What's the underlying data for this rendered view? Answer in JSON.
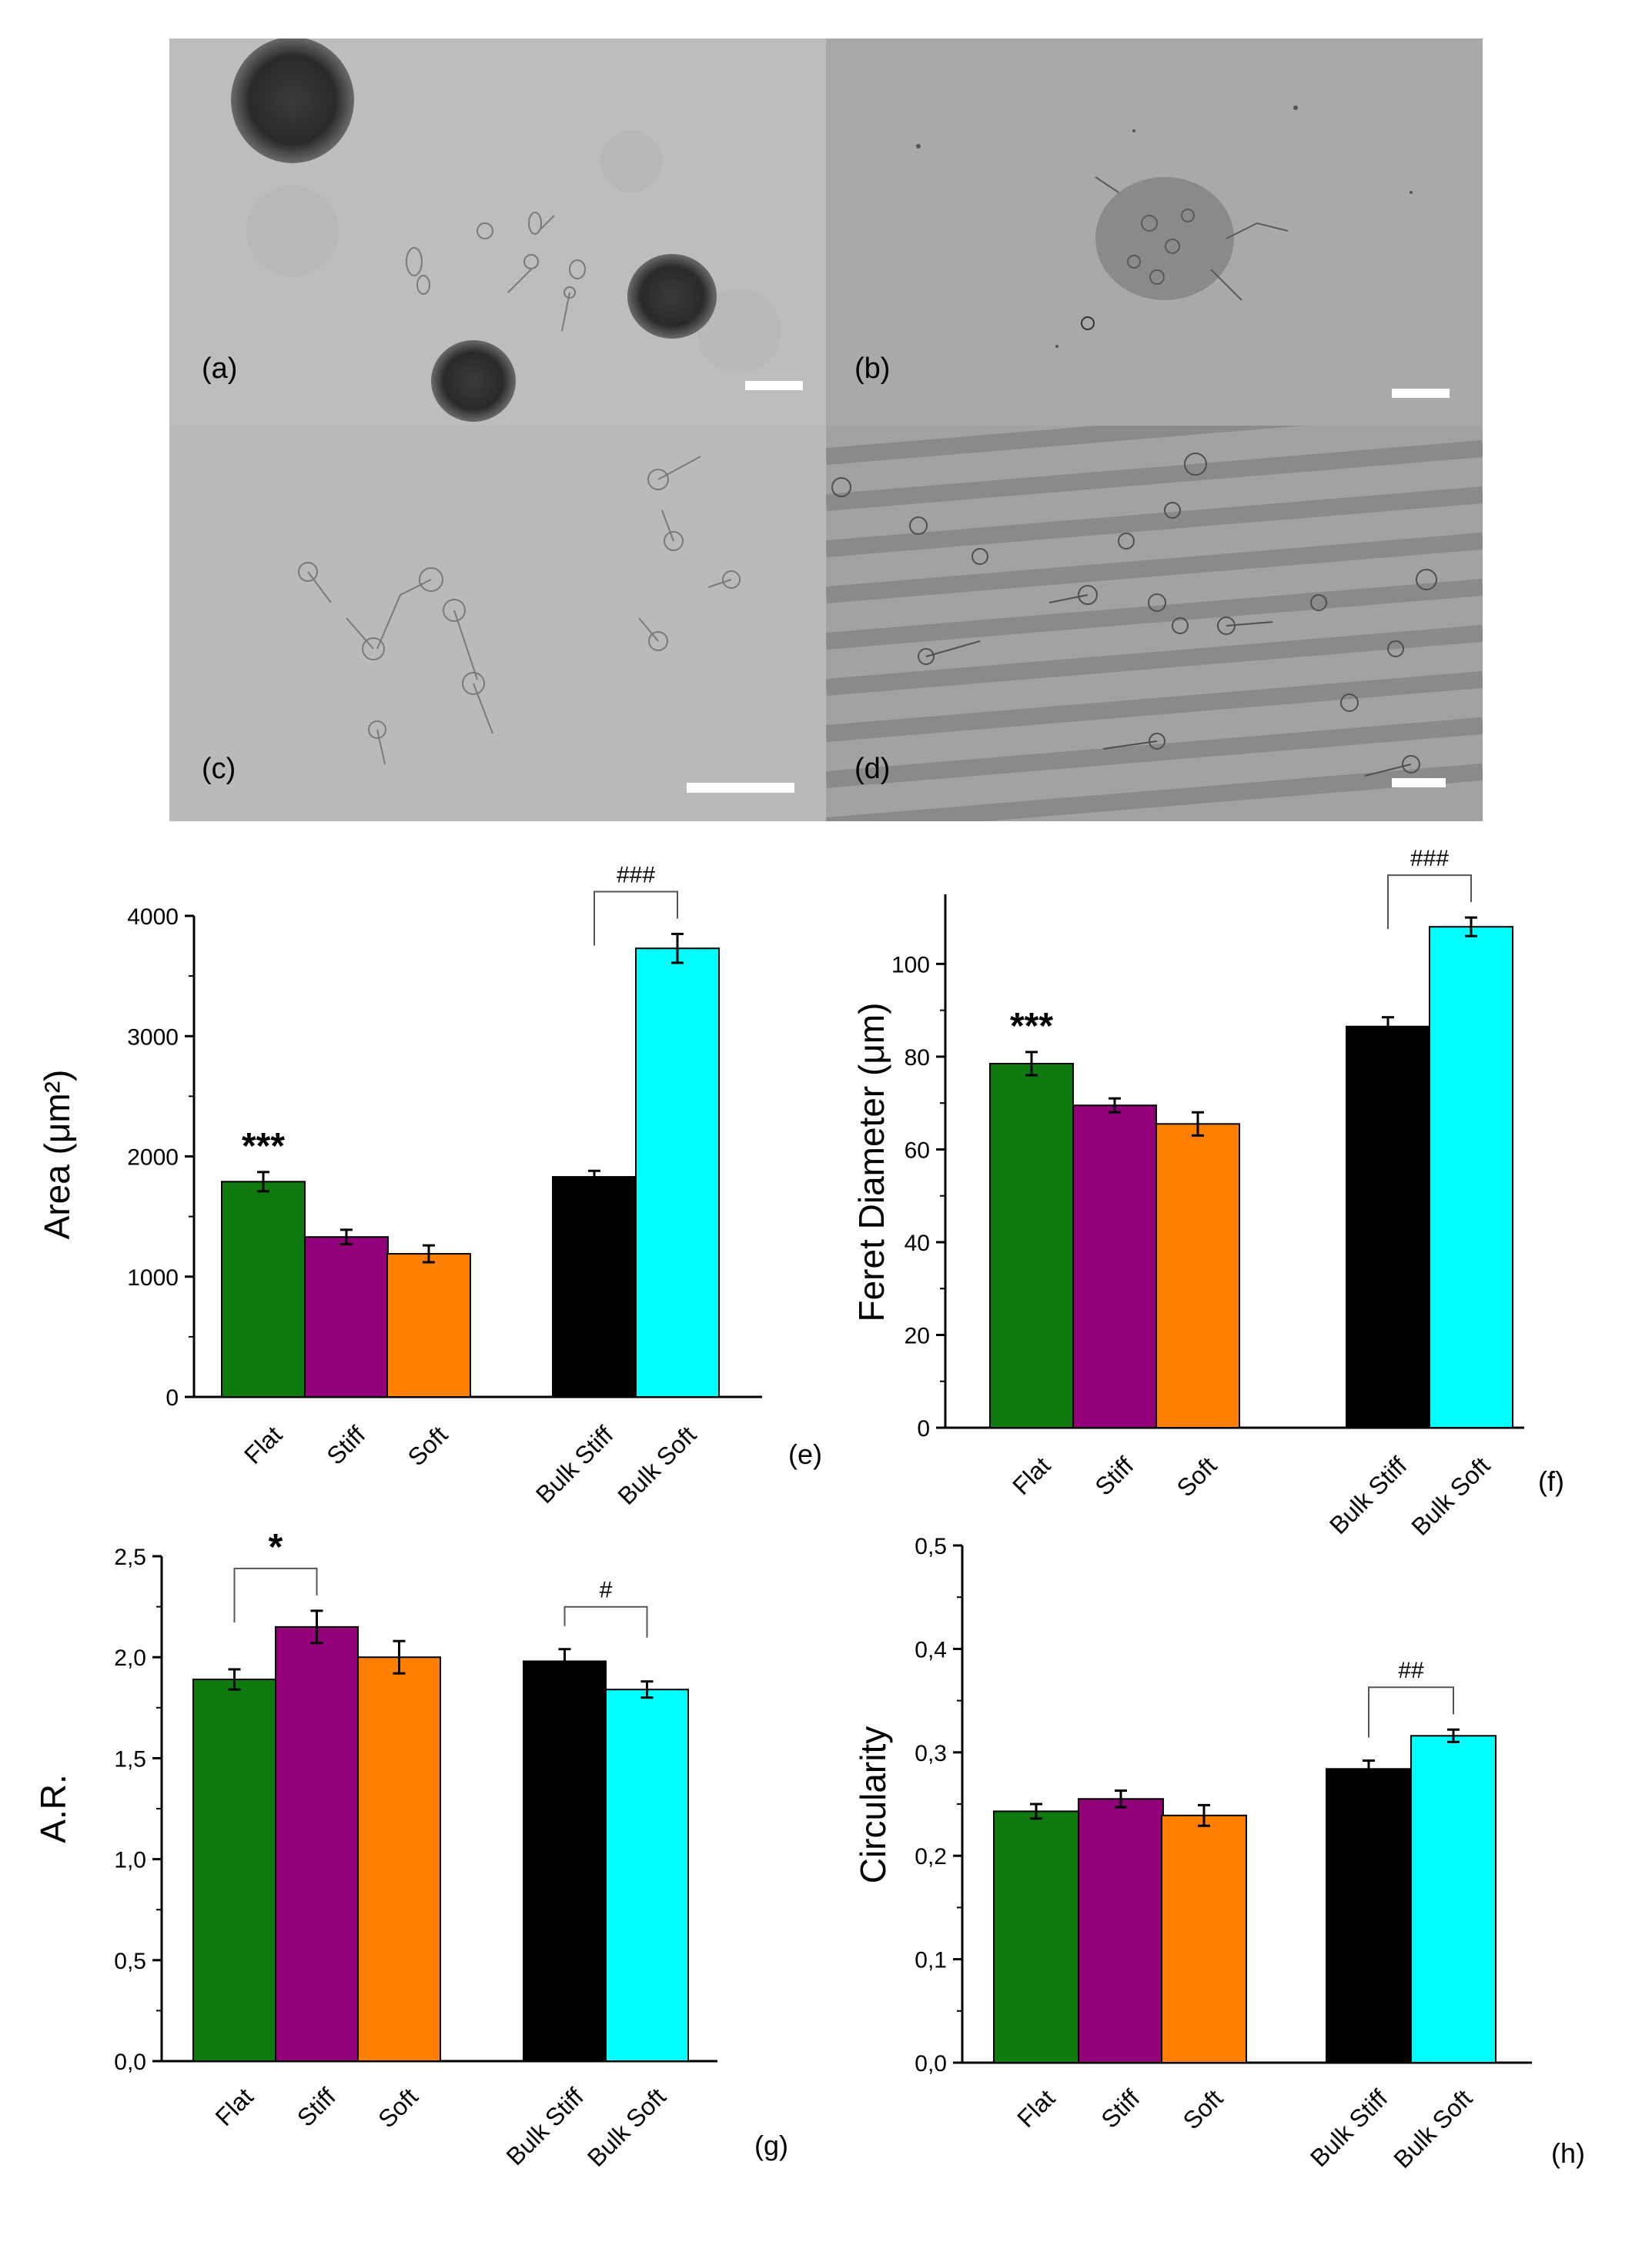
{
  "micrographs": [
    {
      "letter": "(a)"
    },
    {
      "letter": "(b)"
    },
    {
      "letter": "(c)"
    },
    {
      "letter": "(d)"
    }
  ],
  "colors": {
    "Flat": "#0f7a0f",
    "Stiff": "#910079",
    "Soft": "#ff7f00",
    "Bulk Stiff": "#000000",
    "Bulk Soft": "#00ffff"
  },
  "chart_data": [
    {
      "type": "bar",
      "panel": "(e)",
      "categories": [
        "Flat",
        "Stiff",
        "Soft",
        "Bulk Stiff",
        "Bulk Soft"
      ],
      "values": [
        1790,
        1330,
        1190,
        1830,
        3730
      ],
      "errors": [
        80,
        60,
        70,
        50,
        120
      ],
      "ylabel": "Area (μm²)",
      "ylim": [
        0,
        4000
      ],
      "yticks": [
        "0",
        "1000",
        "2000",
        "3000",
        "4000"
      ],
      "annotations": [
        {
          "type": "star",
          "text": "***",
          "category": "Flat"
        },
        {
          "type": "bracket",
          "text": "###",
          "from": "Bulk Stiff",
          "to": "Bulk Soft"
        }
      ]
    },
    {
      "type": "bar",
      "panel": "(f)",
      "categories": [
        "Flat",
        "Stiff",
        "Soft",
        "Bulk Stiff",
        "Bulk Soft"
      ],
      "values": [
        78.5,
        69.5,
        65.5,
        86.5,
        108
      ],
      "errors": [
        2.5,
        1.5,
        2.5,
        2,
        2
      ],
      "ylabel": "Feret Diameter (μm)",
      "ylim": [
        0,
        115
      ],
      "yticks": [
        "0",
        "20",
        "40",
        "60",
        "80",
        "100"
      ],
      "annotations": [
        {
          "type": "star",
          "text": "***",
          "category": "Flat"
        },
        {
          "type": "bracket",
          "text": "###",
          "from": "Bulk Stiff",
          "to": "Bulk Soft"
        }
      ]
    },
    {
      "type": "bar",
      "panel": "(g)",
      "categories": [
        "Flat",
        "Stiff",
        "Soft",
        "Bulk Stiff",
        "Bulk Soft"
      ],
      "values": [
        1.89,
        2.15,
        2.0,
        1.98,
        1.84
      ],
      "errors": [
        0.05,
        0.08,
        0.08,
        0.06,
        0.04
      ],
      "ylabel": "A.R.",
      "ylim": [
        0,
        2.5
      ],
      "yticks": [
        "0,0",
        "0,5",
        "1,0",
        "1,5",
        "2,0",
        "2,5"
      ],
      "annotations": [
        {
          "type": "bracket",
          "text": "*",
          "from": "Flat",
          "to": "Stiff"
        },
        {
          "type": "bracket",
          "text": "#",
          "from": "Bulk Stiff",
          "to": "Bulk Soft"
        }
      ]
    },
    {
      "type": "bar",
      "panel": "(h)",
      "categories": [
        "Flat",
        "Stiff",
        "Soft",
        "Bulk Stiff",
        "Bulk Soft"
      ],
      "values": [
        0.243,
        0.255,
        0.239,
        0.284,
        0.316
      ],
      "errors": [
        0.007,
        0.008,
        0.01,
        0.008,
        0.006
      ],
      "ylabel": "Circularity",
      "ylim": [
        0,
        0.5
      ],
      "yticks": [
        "0,0",
        "0,1",
        "0,2",
        "0,3",
        "0,4",
        "0,5"
      ],
      "annotations": [
        {
          "type": "bracket",
          "text": "##",
          "from": "Bulk Stiff",
          "to": "Bulk Soft"
        }
      ]
    }
  ]
}
